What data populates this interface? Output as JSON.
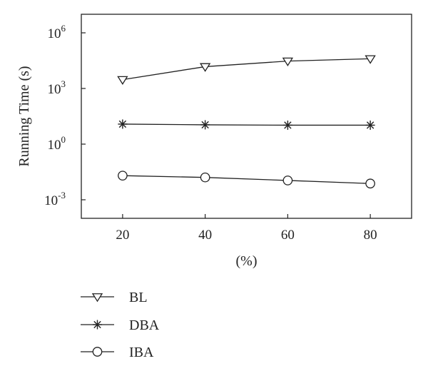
{
  "chart_data": {
    "type": "line",
    "title": "",
    "xlabel": "(%)",
    "ylabel": "Running Time (s)",
    "y_scale": "log",
    "x": [
      20,
      40,
      60,
      80
    ],
    "xlim": [
      10,
      90
    ],
    "ylim": [
      0.0001,
      10000000
    ],
    "x_ticks": [
      "20",
      "40",
      "60",
      "80"
    ],
    "y_ticks": [
      {
        "value": 1000000,
        "base": "10",
        "exp": "6"
      },
      {
        "value": 1000,
        "base": "10",
        "exp": "3"
      },
      {
        "value": 1,
        "base": "10",
        "exp": "0"
      },
      {
        "value": 0.001,
        "base": "10",
        "exp": "-3"
      }
    ],
    "grid": false,
    "legend_position": "bottom-left",
    "series": [
      {
        "name": "BL",
        "marker": "triangle-down",
        "values": [
          3000,
          15000,
          30000,
          40000
        ]
      },
      {
        "name": "DBA",
        "marker": "asterisk",
        "values": [
          12,
          11,
          10.5,
          10.5
        ]
      },
      {
        "name": "IBA",
        "marker": "circle",
        "values": [
          0.02,
          0.016,
          0.011,
          0.0075
        ]
      }
    ]
  }
}
